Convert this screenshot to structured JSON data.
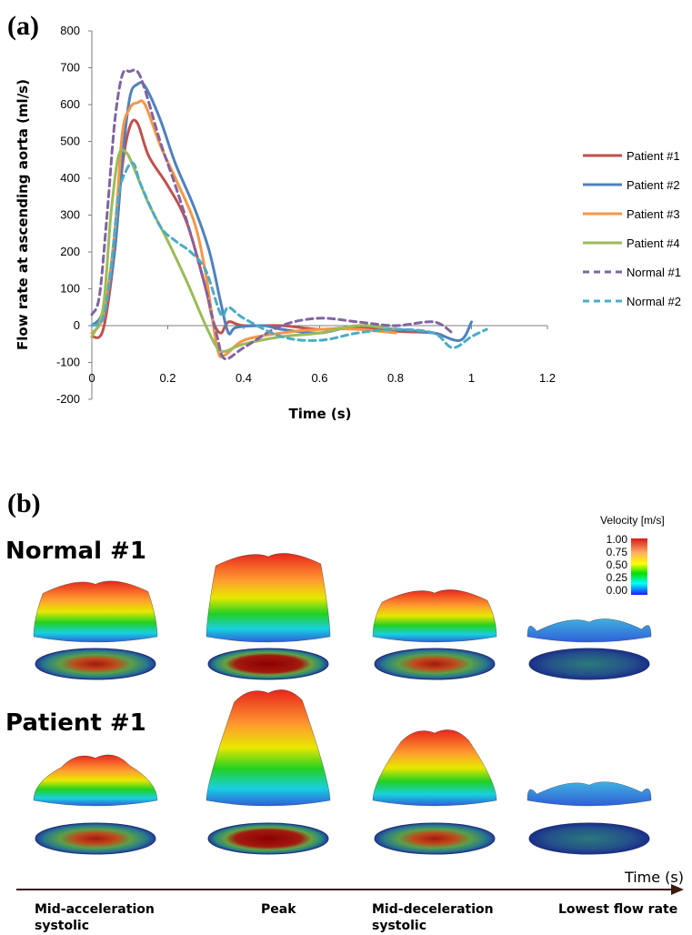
{
  "chart_data": {
    "type": "line",
    "panel_label": "(a)",
    "title": "",
    "xlabel": "Time (s)",
    "ylabel": "Flow rate at ascending aorta (ml/s)",
    "xlim": [
      0,
      1.2
    ],
    "ylim": [
      -200,
      800
    ],
    "xticks": [
      "0",
      "0.2",
      "0.4",
      "0.6",
      "0.8",
      "1",
      "1.2"
    ],
    "yticks": [
      "800",
      "700",
      "600",
      "500",
      "400",
      "300",
      "200",
      "100",
      "0",
      "-100",
      "-200"
    ],
    "grid": false,
    "legend": "right",
    "series": [
      {
        "name": "Patient #1",
        "color": "#c0504d",
        "dash": false,
        "x": [
          0,
          0.03,
          0.06,
          0.08,
          0.1,
          0.12,
          0.15,
          0.2,
          0.25,
          0.3,
          0.32,
          0.34,
          0.36,
          0.4,
          0.5,
          0.6,
          0.7,
          0.8,
          0.9,
          0.93
        ],
        "y": [
          -30,
          -10,
          200,
          430,
          540,
          550,
          460,
          380,
          280,
          100,
          10,
          -20,
          10,
          0,
          0,
          -10,
          -5,
          -15,
          -20,
          -30
        ]
      },
      {
        "name": "Patient #2",
        "color": "#4f81bd",
        "dash": false,
        "x": [
          0,
          0.03,
          0.06,
          0.08,
          0.1,
          0.12,
          0.14,
          0.18,
          0.22,
          0.27,
          0.31,
          0.34,
          0.36,
          0.38,
          0.45,
          0.5,
          0.6,
          0.7,
          0.8,
          0.9,
          0.97,
          1.0
        ],
        "y": [
          0,
          40,
          200,
          450,
          620,
          655,
          650,
          560,
          440,
          320,
          200,
          60,
          -20,
          -5,
          0,
          -10,
          -20,
          0,
          -10,
          -20,
          -40,
          10
        ]
      },
      {
        "name": "Patient #3",
        "color": "#f79646",
        "dash": false,
        "x": [
          0,
          0.03,
          0.06,
          0.08,
          0.1,
          0.12,
          0.14,
          0.18,
          0.22,
          0.27,
          0.3,
          0.33,
          0.35,
          0.4,
          0.5,
          0.6,
          0.7,
          0.8
        ],
        "y": [
          -20,
          30,
          250,
          520,
          590,
          605,
          600,
          490,
          400,
          280,
          140,
          -60,
          -80,
          -40,
          -20,
          -10,
          -10,
          -20
        ]
      },
      {
        "name": "Patient #4",
        "color": "#9bbb59",
        "dash": false,
        "x": [
          0,
          0.03,
          0.05,
          0.07,
          0.09,
          0.11,
          0.15,
          0.2,
          0.25,
          0.3,
          0.33,
          0.35,
          0.4,
          0.5,
          0.6,
          0.7,
          0.8
        ],
        "y": [
          -30,
          50,
          300,
          460,
          470,
          430,
          330,
          230,
          120,
          0,
          -60,
          -70,
          -50,
          -30,
          -20,
          0,
          -10
        ]
      },
      {
        "name": "Normal #1",
        "color": "#8064a2",
        "dash": true,
        "x": [
          0,
          0.02,
          0.04,
          0.06,
          0.08,
          0.1,
          0.12,
          0.14,
          0.18,
          0.22,
          0.26,
          0.3,
          0.33,
          0.35,
          0.4,
          0.5,
          0.6,
          0.7,
          0.8,
          0.9,
          0.95
        ],
        "y": [
          30,
          80,
          300,
          550,
          680,
          690,
          690,
          640,
          500,
          380,
          250,
          100,
          -30,
          -90,
          -60,
          0,
          20,
          10,
          0,
          10,
          -20
        ]
      },
      {
        "name": "Normal #2",
        "color": "#4bacc6",
        "dash": true,
        "x": [
          0,
          0.03,
          0.05,
          0.07,
          0.09,
          0.11,
          0.13,
          0.18,
          0.22,
          0.26,
          0.3,
          0.34,
          0.36,
          0.4,
          0.5,
          0.6,
          0.7,
          0.8,
          0.9,
          0.95,
          1.0,
          1.04
        ],
        "y": [
          0,
          20,
          150,
          350,
          420,
          440,
          380,
          270,
          230,
          200,
          150,
          30,
          50,
          20,
          -30,
          -40,
          -20,
          -10,
          -20,
          -60,
          -30,
          -10
        ]
      }
    ]
  },
  "panel_b": {
    "panel_label": "(b)",
    "rows": [
      "Normal #1",
      "Patient #1"
    ],
    "phases": [
      "Mid-acceleration systolic",
      "Peak",
      "Mid-deceleration systolic",
      "Lowest flow rate"
    ],
    "time_label": "Time (s)",
    "colorbar": {
      "title": "Velocity [m/s]",
      "ticks": [
        "1.00",
        "0.75",
        "0.50",
        "0.25",
        "0.00"
      ],
      "colors": [
        "#d7191c",
        "#fdae61",
        "#ffff00",
        "#00e000",
        "#00ffff",
        "#1a1aff"
      ]
    },
    "heights": [
      [
        0.62,
        1.0,
        0.5,
        0.1
      ],
      [
        0.35,
        1.0,
        0.6,
        0.08
      ]
    ]
  }
}
